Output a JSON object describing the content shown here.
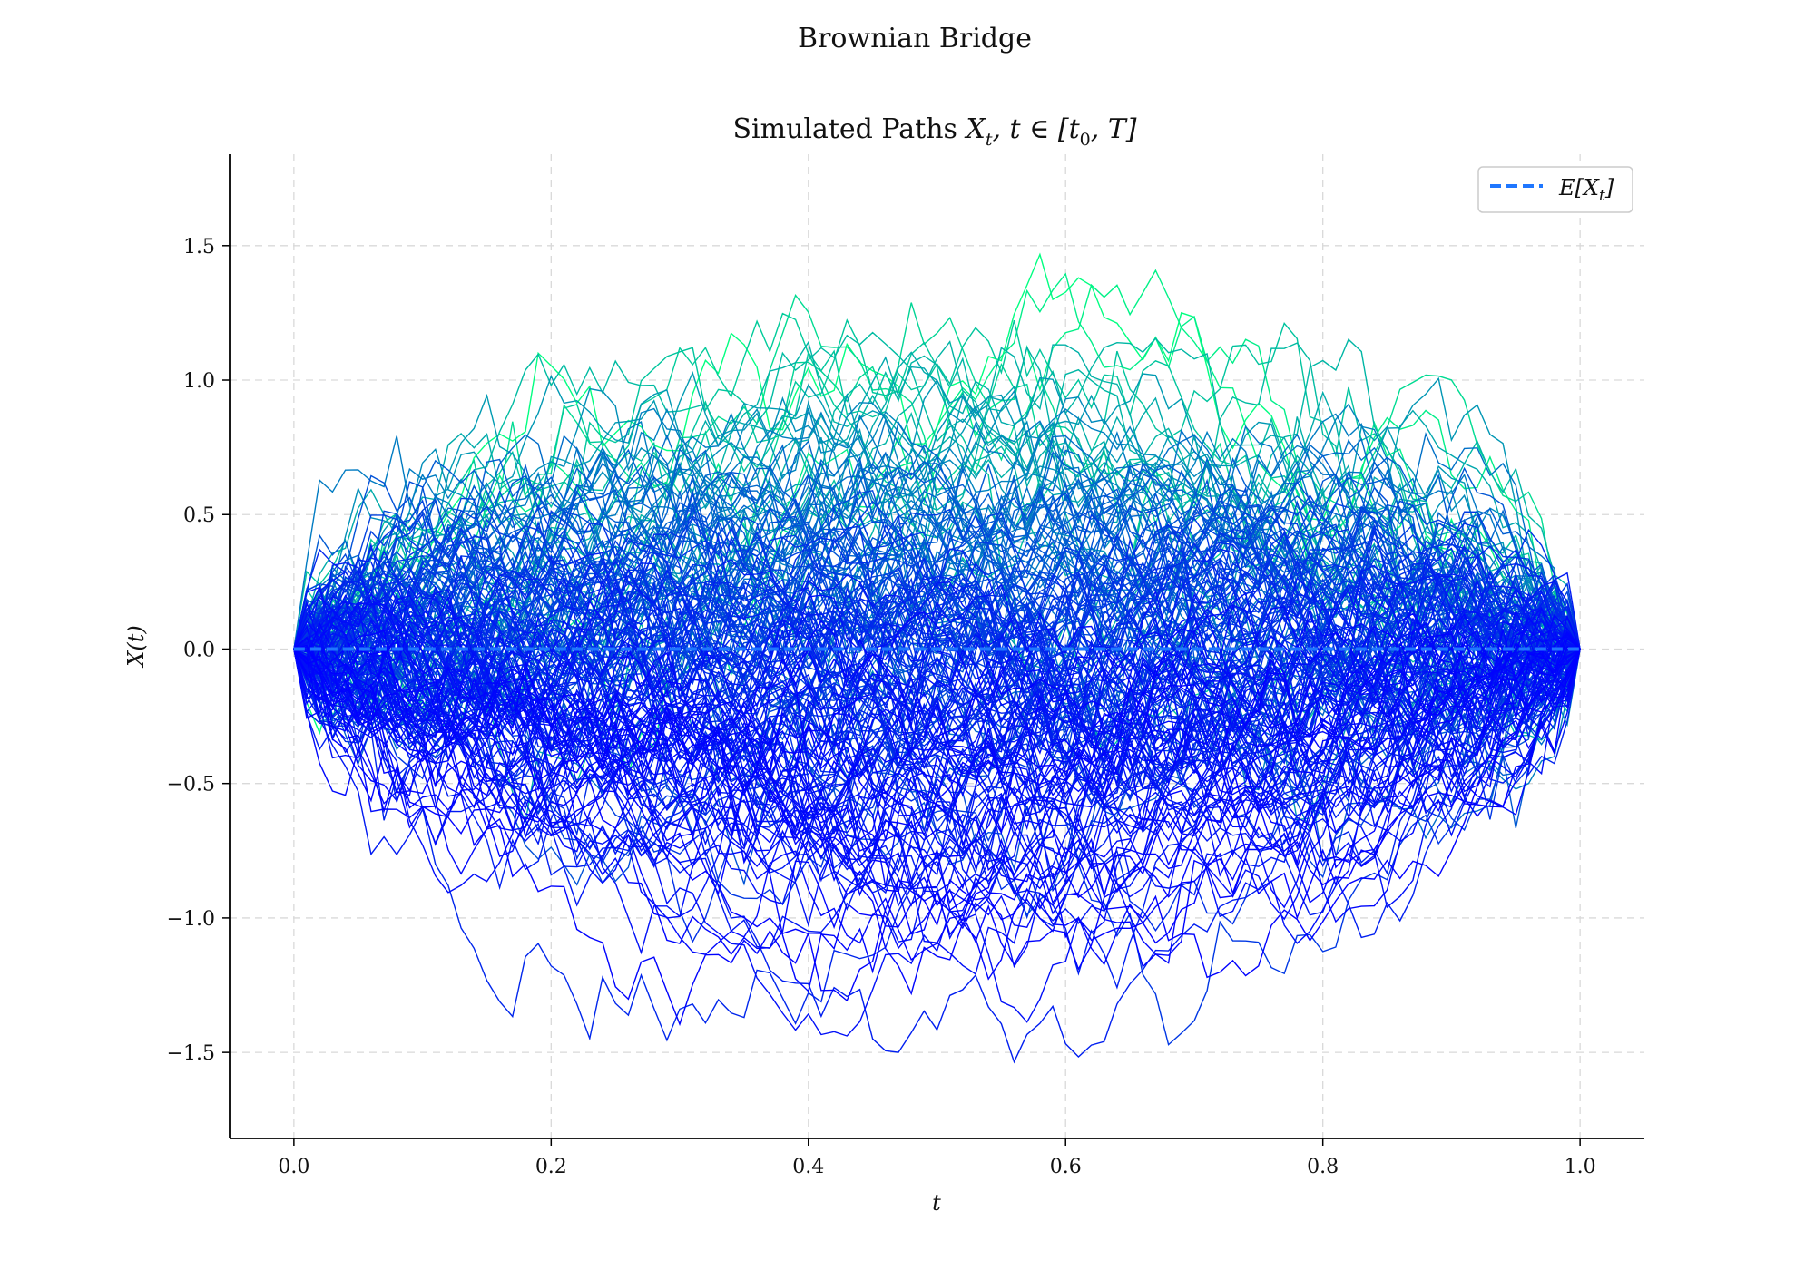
{
  "figure": {
    "suptitle": "Brownian Bridge",
    "title": "Simulated Paths X_t, t ∈ [t_0, T]"
  },
  "chart_data": {
    "type": "line",
    "title": "Simulated Paths X_t, t ∈ [t_0, T]",
    "xlabel": "t",
    "ylabel": "X(t)",
    "xlim": [
      -0.05,
      1.05
    ],
    "ylim": [
      -1.82,
      1.84
    ],
    "x_ticks": [
      0.0,
      0.2,
      0.4,
      0.6,
      0.8,
      1.0
    ],
    "x_tick_labels": [
      "0.0",
      "0.2",
      "0.4",
      "0.6",
      "0.8",
      "1.0"
    ],
    "y_ticks": [
      -1.5,
      -1.0,
      -0.5,
      0.0,
      0.5,
      1.0,
      1.5
    ],
    "y_tick_labels": [
      "−1.5",
      "−1.0",
      "−0.5",
      "0.0",
      "0.5",
      "1.0",
      "1.5"
    ],
    "grid": true,
    "grid_style": "dashed",
    "legend": {
      "placement": "top-right",
      "entries": [
        {
          "label": "E[X_t]",
          "style": "dashed",
          "color": "#1f77ff"
        }
      ]
    },
    "mean_series": {
      "name": "E[X_t]",
      "x": [
        0.0,
        1.0
      ],
      "y": [
        0.0,
        0.0
      ]
    },
    "paths": {
      "count": 200,
      "t0": 0.0,
      "T": 1.0,
      "start_value": 0.0,
      "end_value": 0.0,
      "colormap": "winter (blue → green, by max value)",
      "colormap_low": "#0000ff",
      "colormap_high": "#00ff80",
      "observed_max": 1.66,
      "observed_min": -1.66
    }
  },
  "colors": {
    "background": "#ffffff",
    "grid": "#d9d9d9",
    "axis": "#000000",
    "mean_line": "#1f77ff"
  }
}
